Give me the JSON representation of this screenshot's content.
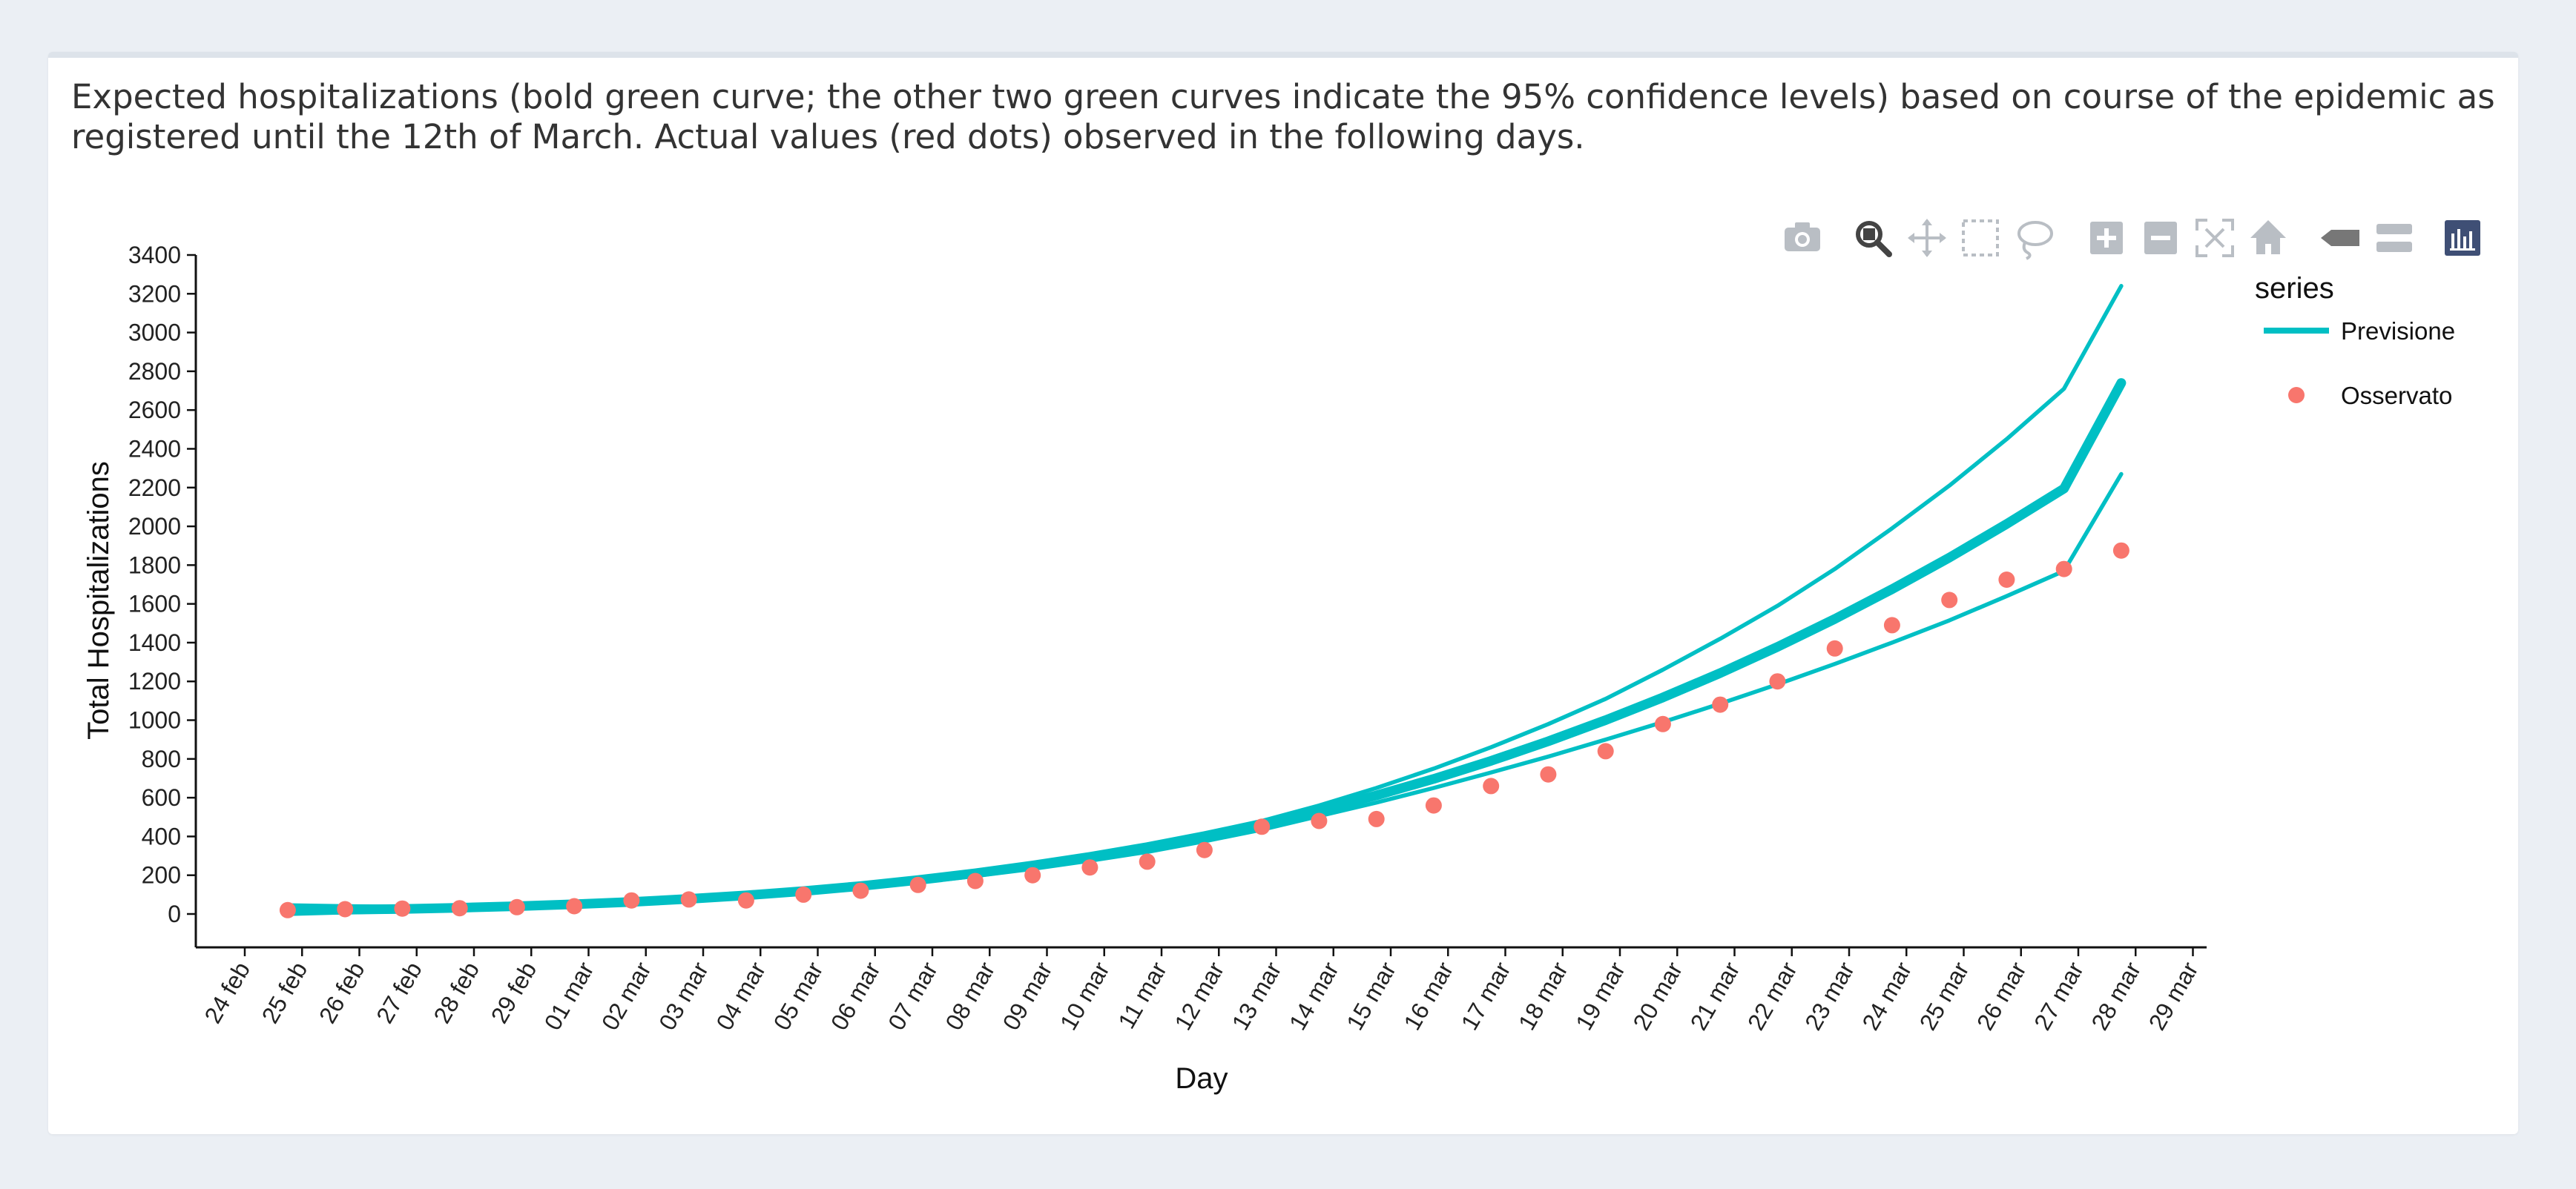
{
  "caption": "Expected hospitalizations (bold green curve; the other two green curves indicate the 95% confidence levels) based on course of the epidemic as registered until the 12th of March. Actual values (red dots) observed in the following days.",
  "modebar": [
    {
      "name": "camera-icon",
      "active": false
    },
    {
      "name": "zoom-icon",
      "active": true
    },
    {
      "name": "pan-icon",
      "active": false
    },
    {
      "name": "box-select-icon",
      "active": false
    },
    {
      "name": "lasso-select-icon",
      "active": false
    },
    {
      "name": "zoom-in-icon",
      "active": false
    },
    {
      "name": "zoom-out-icon",
      "active": false
    },
    {
      "name": "autoscale-icon",
      "active": false
    },
    {
      "name": "reset-axes-icon",
      "active": false
    },
    {
      "name": "spike-lines-icon",
      "active": false
    },
    {
      "name": "compare-hover-icon",
      "active": false
    },
    {
      "name": "plotly-logo-icon",
      "active": false
    }
  ],
  "chart_data": {
    "type": "line",
    "xlabel": "Day",
    "ylabel": "Total Hospitalizations",
    "ylim": [
      0,
      3400
    ],
    "yticks": [
      0,
      200,
      400,
      600,
      800,
      1000,
      1200,
      1400,
      1600,
      1800,
      2000,
      2200,
      2400,
      2600,
      2800,
      3000,
      3200,
      3400
    ],
    "xticks": [
      "24 feb",
      "25 feb",
      "26 feb",
      "27 feb",
      "28 feb",
      "29 feb",
      "01 mar",
      "02 mar",
      "03 mar",
      "04 mar",
      "05 mar",
      "06 mar",
      "07 mar",
      "08 mar",
      "09 mar",
      "10 mar",
      "11 mar",
      "12 mar",
      "13 mar",
      "14 mar",
      "15 mar",
      "16 mar",
      "17 mar",
      "18 mar",
      "19 mar",
      "20 mar",
      "21 mar",
      "22 mar",
      "23 mar",
      "24 mar",
      "25 mar",
      "26 mar",
      "27 mar",
      "28 mar",
      "29 mar"
    ],
    "x": [
      "24 feb 18:00",
      "25 feb 18:00",
      "26 feb 18:00",
      "27 feb 18:00",
      "28 feb 18:00",
      "29 feb 18:00",
      "01 mar 18:00",
      "02 mar 18:00",
      "03 mar 18:00",
      "04 mar 18:00",
      "05 mar 18:00",
      "06 mar 18:00",
      "07 mar 18:00",
      "08 mar 18:00",
      "09 mar 18:00",
      "10 mar 18:00",
      "11 mar 18:00",
      "12 mar 18:00",
      "13 mar 18:00",
      "14 mar 18:00",
      "15 mar 18:00",
      "16 mar 18:00",
      "17 mar 18:00",
      "18 mar 18:00",
      "19 mar 18:00",
      "20 mar 18:00",
      "21 mar 18:00",
      "22 mar 18:00",
      "23 mar 18:00",
      "24 mar 18:00",
      "25 mar 18:00",
      "26 mar 18:00",
      "27 mar 18:00"
    ],
    "legend": {
      "title": "series",
      "placement": "top-right"
    },
    "grid": false,
    "series": [
      {
        "name": "Previsione",
        "color": "#00bfc4",
        "role": "forecast",
        "values": [
          20,
          22,
          26,
          32,
          40,
          50,
          62,
          78,
          96,
          118,
          144,
          175,
          210,
          250,
          295,
          345,
          402,
          465,
          535,
          612,
          697,
          790,
          891,
          1000,
          1117,
          1243,
          1378,
          1522,
          1676,
          1839,
          2012,
          2195,
          2740
        ]
      },
      {
        "name": "Previsione",
        "color": "#00bfc4",
        "role": "upper-95",
        "values": [
          45,
          40,
          38,
          40,
          46,
          55,
          67,
          83,
          102,
          124,
          150,
          181,
          215,
          255,
          300,
          350,
          410,
          480,
          560,
          650,
          750,
          860,
          980,
          1110,
          1260,
          1420,
          1590,
          1780,
          1990,
          2210,
          2450,
          2710,
          3240
        ]
      },
      {
        "name": "Previsione",
        "color": "#00bfc4",
        "role": "lower-95",
        "values": [
          0,
          8,
          15,
          22,
          30,
          40,
          52,
          68,
          86,
          108,
          134,
          163,
          196,
          233,
          275,
          320,
          375,
          435,
          505,
          575,
          650,
          730,
          812,
          900,
          990,
          1085,
          1185,
          1290,
          1400,
          1515,
          1640,
          1770,
          2270
        ]
      },
      {
        "name": "Osservato",
        "color": "#f8766d",
        "role": "observed",
        "values": [
          20,
          25,
          28,
          30,
          35,
          40,
          70,
          75,
          70,
          100,
          120,
          150,
          170,
          200,
          240,
          270,
          330,
          450,
          480,
          490,
          560,
          660,
          720,
          840,
          980,
          1080,
          1200,
          1370,
          1490,
          1620,
          1725,
          1780,
          1875
        ]
      }
    ]
  }
}
